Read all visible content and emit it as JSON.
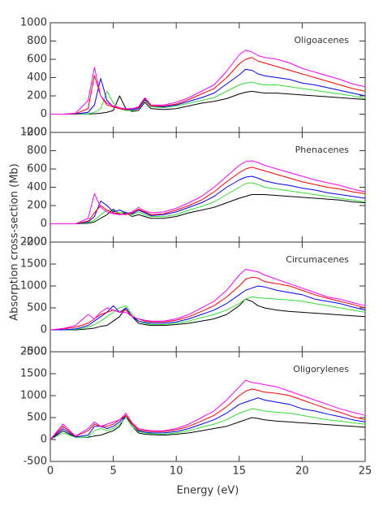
{
  "chart_data": [
    {
      "type": "line",
      "title": "Oligoacenes",
      "ylabel": "Absorption cross-section (Mb)",
      "x": [
        0,
        1,
        2,
        3,
        3.5,
        4,
        4.5,
        5,
        5.5,
        6,
        6.5,
        7,
        7.5,
        8,
        9,
        10,
        11,
        12,
        13,
        14,
        15,
        15.5,
        16,
        16.5,
        17,
        18,
        19,
        20,
        21,
        22,
        23,
        24,
        25
      ],
      "xlim": [
        0,
        25
      ],
      "ylim": [
        -200,
        1000
      ],
      "yticks": [
        -200,
        0,
        200,
        400,
        600,
        800,
        1000
      ],
      "series": [
        {
          "color": "#000000",
          "values": [
            0,
            0,
            0,
            2,
            5,
            10,
            20,
            40,
            200,
            60,
            30,
            40,
            130,
            60,
            50,
            60,
            90,
            120,
            140,
            170,
            220,
            240,
            250,
            240,
            230,
            230,
            220,
            210,
            200,
            190,
            180,
            170,
            160
          ]
        },
        {
          "color": "#33dd33",
          "values": [
            0,
            0,
            0,
            5,
            20,
            60,
            250,
            120,
            60,
            40,
            40,
            60,
            150,
            80,
            70,
            90,
            120,
            150,
            180,
            250,
            320,
            340,
            350,
            330,
            320,
            320,
            300,
            280,
            260,
            240,
            220,
            200,
            170
          ]
        },
        {
          "color": "#0000ff",
          "values": [
            0,
            0,
            2,
            20,
            100,
            390,
            150,
            80,
            60,
            50,
            50,
            60,
            160,
            90,
            80,
            100,
            140,
            180,
            230,
            330,
            430,
            490,
            480,
            440,
            420,
            400,
            380,
            340,
            320,
            290,
            260,
            230,
            200
          ]
        },
        {
          "color": "#ff0000",
          "values": [
            0,
            0,
            5,
            60,
            420,
            200,
            100,
            80,
            60,
            50,
            60,
            70,
            170,
            90,
            90,
            110,
            160,
            220,
            280,
            400,
            550,
            600,
            620,
            580,
            560,
            520,
            480,
            440,
            400,
            360,
            320,
            280,
            250
          ]
        },
        {
          "color": "#ff00ff",
          "values": [
            0,
            0,
            10,
            150,
            510,
            200,
            120,
            90,
            70,
            60,
            60,
            80,
            180,
            100,
            100,
            130,
            180,
            250,
            320,
            470,
            650,
            700,
            680,
            640,
            620,
            600,
            560,
            500,
            460,
            420,
            380,
            330,
            300
          ]
        }
      ]
    },
    {
      "type": "line",
      "title": "Phenacenes",
      "x": [
        0,
        1,
        2,
        3,
        3.5,
        4,
        4.5,
        5,
        5.5,
        6,
        6.5,
        7,
        7.5,
        8,
        9,
        10,
        11,
        12,
        13,
        14,
        15,
        15.5,
        16,
        16.5,
        17,
        18,
        19,
        20,
        21,
        22,
        23,
        24,
        25
      ],
      "xlim": [
        0,
        25
      ],
      "ylim": [
        -200,
        1000
      ],
      "yticks": [
        -200,
        0,
        200,
        400,
        600,
        800,
        1000
      ],
      "series": [
        {
          "color": "#000000",
          "values": [
            0,
            0,
            0,
            5,
            20,
            60,
            100,
            160,
            100,
            120,
            80,
            100,
            80,
            60,
            60,
            80,
            120,
            150,
            180,
            230,
            280,
            300,
            320,
            320,
            320,
            310,
            300,
            290,
            280,
            270,
            260,
            240,
            230
          ]
        },
        {
          "color": "#33dd33",
          "values": [
            0,
            0,
            0,
            10,
            40,
            100,
            150,
            140,
            120,
            130,
            100,
            130,
            100,
            80,
            80,
            100,
            150,
            190,
            240,
            320,
            400,
            440,
            450,
            430,
            400,
            380,
            360,
            340,
            320,
            300,
            280,
            260,
            240
          ]
        },
        {
          "color": "#0000ff",
          "values": [
            0,
            0,
            0,
            20,
            80,
            250,
            200,
            130,
            150,
            120,
            110,
            150,
            120,
            90,
            100,
            130,
            180,
            230,
            300,
            400,
            480,
            510,
            520,
            500,
            470,
            440,
            420,
            390,
            370,
            340,
            320,
            300,
            280
          ]
        },
        {
          "color": "#ff0000",
          "values": [
            0,
            0,
            0,
            30,
            120,
            200,
            150,
            120,
            110,
            100,
            120,
            160,
            130,
            100,
            110,
            150,
            200,
            260,
            350,
            460,
            560,
            600,
            620,
            600,
            580,
            540,
            500,
            460,
            430,
            400,
            380,
            350,
            330
          ]
        },
        {
          "color": "#ff00ff",
          "values": [
            0,
            0,
            0,
            60,
            330,
            180,
            130,
            110,
            100,
            110,
            130,
            180,
            140,
            120,
            130,
            170,
            230,
            300,
            400,
            520,
            640,
            680,
            690,
            670,
            640,
            600,
            560,
            520,
            480,
            450,
            420,
            380,
            350
          ]
        }
      ]
    },
    {
      "type": "line",
      "title": "Circumacenes",
      "x": [
        0,
        1,
        2,
        3,
        3.5,
        4,
        4.5,
        5,
        5.5,
        6,
        6.5,
        7,
        7.5,
        8,
        9,
        10,
        11,
        12,
        13,
        14,
        15,
        15.5,
        16,
        16.5,
        17,
        18,
        19,
        20,
        21,
        22,
        23,
        24,
        25
      ],
      "xlim": [
        0,
        25
      ],
      "ylim": [
        -500,
        2000
      ],
      "yticks": [
        -500,
        0,
        500,
        1000,
        1500,
        2000
      ],
      "series": [
        {
          "color": "#000000",
          "values": [
            0,
            0,
            0,
            20,
            40,
            80,
            100,
            200,
            300,
            500,
            300,
            150,
            120,
            100,
            100,
            120,
            150,
            200,
            250,
            350,
            550,
            700,
            650,
            550,
            500,
            450,
            420,
            400,
            380,
            360,
            340,
            320,
            300
          ]
        },
        {
          "color": "#33dd33",
          "values": [
            0,
            0,
            10,
            60,
            120,
            200,
            300,
            400,
            500,
            550,
            350,
            200,
            150,
            120,
            120,
            150,
            200,
            280,
            350,
            450,
            600,
            700,
            750,
            730,
            720,
            700,
            680,
            650,
            600,
            550,
            500,
            450,
            400
          ]
        },
        {
          "color": "#0000ff",
          "values": [
            0,
            0,
            20,
            100,
            200,
            300,
            400,
            550,
            400,
            500,
            300,
            200,
            170,
            150,
            150,
            180,
            250,
            350,
            450,
            600,
            800,
            900,
            950,
            1000,
            980,
            900,
            850,
            800,
            700,
            650,
            600,
            520,
            450
          ]
        },
        {
          "color": "#ff0000",
          "values": [
            0,
            20,
            60,
            150,
            250,
            350,
            400,
            450,
            400,
            450,
            300,
            250,
            200,
            180,
            180,
            220,
            300,
            420,
            550,
            750,
            1000,
            1150,
            1200,
            1180,
            1100,
            1050,
            1000,
            900,
            800,
            720,
            650,
            580,
            500
          ]
        },
        {
          "color": "#ff00ff",
          "values": [
            0,
            30,
            100,
            350,
            250,
            400,
            500,
            450,
            400,
            400,
            300,
            250,
            220,
            200,
            200,
            250,
            350,
            500,
            650,
            900,
            1250,
            1380,
            1350,
            1320,
            1250,
            1150,
            1050,
            950,
            850,
            750,
            700,
            620,
            550
          ]
        }
      ]
    },
    {
      "type": "line",
      "title": "Oligorylenes",
      "xlabel": "Energy (eV)",
      "x": [
        0,
        1,
        2,
        3,
        3.5,
        4,
        4.5,
        5,
        5.5,
        6,
        6.5,
        7,
        7.5,
        8,
        9,
        10,
        11,
        12,
        13,
        14,
        15,
        15.5,
        16,
        16.5,
        17,
        18,
        19,
        20,
        21,
        22,
        23,
        24,
        25
      ],
      "xlim": [
        0,
        25
      ],
      "xticks": [
        0,
        5,
        10,
        15,
        20,
        25
      ],
      "ylim": [
        -500,
        2000
      ],
      "yticks": [
        -500,
        0,
        500,
        1000,
        1500,
        2000
      ],
      "series": [
        {
          "color": "#000000",
          "values": [
            0,
            200,
            50,
            50,
            80,
            100,
            150,
            200,
            300,
            550,
            300,
            150,
            120,
            110,
            100,
            120,
            150,
            200,
            250,
            300,
            400,
            450,
            500,
            480,
            450,
            420,
            400,
            380,
            360,
            340,
            320,
            300,
            280
          ]
        },
        {
          "color": "#33dd33",
          "values": [
            0,
            150,
            50,
            60,
            200,
            250,
            200,
            250,
            350,
            500,
            300,
            180,
            150,
            130,
            120,
            150,
            200,
            280,
            350,
            450,
            600,
            650,
            700,
            680,
            650,
            620,
            600,
            550,
            500,
            450,
            420,
            380,
            350
          ]
        },
        {
          "color": "#0000ff",
          "values": [
            0,
            250,
            60,
            100,
            300,
            300,
            250,
            300,
            400,
            550,
            350,
            200,
            170,
            150,
            150,
            180,
            250,
            350,
            450,
            600,
            800,
            850,
            900,
            950,
            900,
            850,
            800,
            700,
            650,
            580,
            520,
            450,
            400
          ]
        },
        {
          "color": "#ff0000",
          "values": [
            0,
            300,
            70,
            200,
            350,
            300,
            300,
            350,
            450,
            550,
            350,
            220,
            200,
            180,
            180,
            220,
            300,
            420,
            550,
            750,
            1000,
            1100,
            1150,
            1120,
            1080,
            1050,
            1000,
            900,
            800,
            700,
            620,
            520,
            450
          ]
        },
        {
          "color": "#ff00ff",
          "values": [
            0,
            350,
            80,
            250,
            400,
            300,
            350,
            400,
            450,
            600,
            380,
            250,
            220,
            200,
            200,
            250,
            350,
            500,
            650,
            900,
            1200,
            1350,
            1300,
            1280,
            1250,
            1200,
            1100,
            1000,
            900,
            800,
            700,
            620,
            550
          ]
        }
      ]
    }
  ]
}
